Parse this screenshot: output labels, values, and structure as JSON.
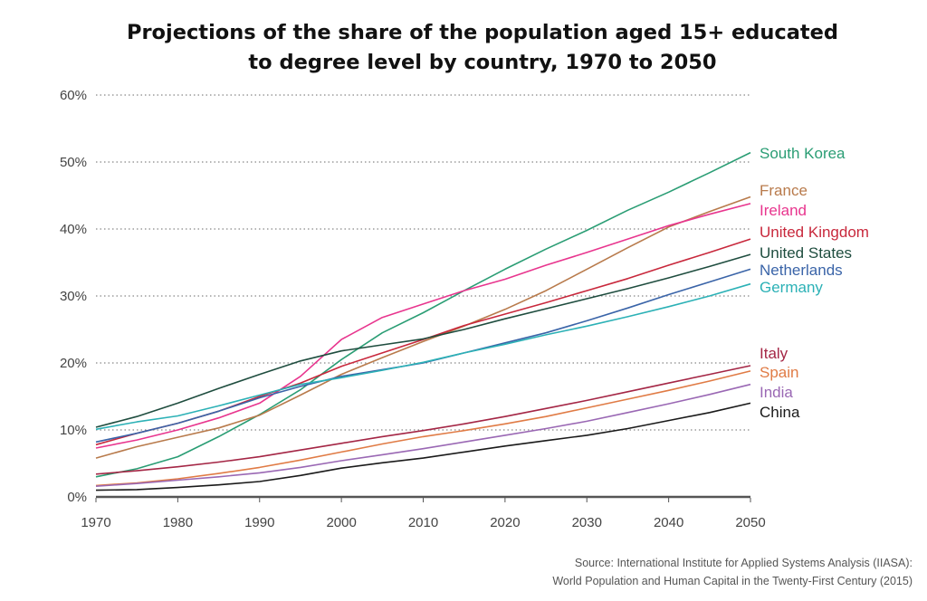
{
  "title": "Projections of the share of the population aged 15+ educated\nto degree level by country, 1970 to 2050",
  "source": {
    "line1": "Source: International Institute for Applied Systems Analysis (IIASA):",
    "line2": "World Population and Human Capital in the Twenty-First Century (2015)"
  },
  "chart_data": {
    "type": "line",
    "title": "Projections of the share of the population aged 15+ educated to degree level by country, 1970 to 2050",
    "xlabel": "",
    "ylabel": "",
    "xlim": [
      1970,
      2050
    ],
    "ylim": [
      0,
      60
    ],
    "xticks": [
      1970,
      1980,
      1990,
      2000,
      2010,
      2020,
      2030,
      2040,
      2050
    ],
    "yticks": [
      0,
      10,
      20,
      30,
      40,
      50,
      60
    ],
    "ytick_suffix": "%",
    "grid": "horizontal dotted",
    "legend": "labels at line ends",
    "x": [
      1970,
      1975,
      1980,
      1985,
      1990,
      1995,
      2000,
      2005,
      2010,
      2015,
      2020,
      2025,
      2030,
      2035,
      2040,
      2045,
      2050
    ],
    "series": [
      {
        "name": "South Korea",
        "color": "#2a9d74",
        "values": [
          3.0,
          4.2,
          6.0,
          9.0,
          12.3,
          16.0,
          20.5,
          24.5,
          27.5,
          30.8,
          34.0,
          37.0,
          39.8,
          42.8,
          45.5,
          48.4,
          51.4
        ]
      },
      {
        "name": "France",
        "color": "#b87a4b",
        "values": [
          5.8,
          7.5,
          8.9,
          10.3,
          12.2,
          15.2,
          18.3,
          20.8,
          23.2,
          25.5,
          28.0,
          30.8,
          34.0,
          37.2,
          40.3,
          42.6,
          44.8
        ]
      },
      {
        "name": "Ireland",
        "color": "#e8358e",
        "values": [
          7.3,
          8.5,
          10.0,
          11.8,
          14.0,
          18.0,
          23.5,
          26.8,
          28.8,
          30.8,
          32.5,
          34.6,
          36.5,
          38.5,
          40.5,
          42.2,
          43.8
        ]
      },
      {
        "name": "United Kingdom",
        "color": "#c8283c",
        "values": [
          7.8,
          9.5,
          11.0,
          12.8,
          15.0,
          17.0,
          19.5,
          21.5,
          23.5,
          25.6,
          27.3,
          29.0,
          30.8,
          32.6,
          34.6,
          36.5,
          38.5
        ]
      },
      {
        "name": "United States",
        "color": "#1f4d3f",
        "values": [
          10.4,
          12.0,
          14.0,
          16.2,
          18.3,
          20.3,
          21.8,
          22.7,
          23.6,
          25.0,
          26.6,
          28.1,
          29.6,
          31.1,
          32.7,
          34.4,
          36.2
        ]
      },
      {
        "name": "Netherlands",
        "color": "#3a64a8",
        "values": [
          8.2,
          9.5,
          11.0,
          12.8,
          14.8,
          16.5,
          18.0,
          19.0,
          20.0,
          21.5,
          23.0,
          24.5,
          26.3,
          28.2,
          30.2,
          32.1,
          34.0
        ]
      },
      {
        "name": "Germany",
        "color": "#2cb1b6",
        "values": [
          10.1,
          11.2,
          12.1,
          13.6,
          15.2,
          16.8,
          17.8,
          18.9,
          20.1,
          21.5,
          22.8,
          24.2,
          25.5,
          26.9,
          28.4,
          30.0,
          31.8
        ]
      },
      {
        "name": "Italy",
        "color": "#a42645",
        "values": [
          3.4,
          3.9,
          4.5,
          5.2,
          6.0,
          7.0,
          8.0,
          9.0,
          9.9,
          10.9,
          12.0,
          13.2,
          14.4,
          15.7,
          17.0,
          18.3,
          19.6
        ]
      },
      {
        "name": "Spain",
        "color": "#e07b45",
        "values": [
          1.7,
          2.1,
          2.7,
          3.5,
          4.4,
          5.5,
          6.7,
          7.9,
          9.0,
          9.9,
          10.9,
          12.0,
          13.3,
          14.6,
          15.9,
          17.3,
          18.8
        ]
      },
      {
        "name": "India",
        "color": "#9a68b4",
        "values": [
          1.6,
          2.0,
          2.5,
          3.0,
          3.6,
          4.4,
          5.4,
          6.3,
          7.2,
          8.2,
          9.2,
          10.2,
          11.3,
          12.6,
          13.9,
          15.3,
          16.8
        ]
      },
      {
        "name": "China",
        "color": "#1a1a1a",
        "values": [
          1.0,
          1.1,
          1.4,
          1.8,
          2.3,
          3.2,
          4.3,
          5.1,
          5.8,
          6.7,
          7.6,
          8.4,
          9.2,
          10.2,
          11.4,
          12.6,
          14.0
        ]
      }
    ]
  }
}
